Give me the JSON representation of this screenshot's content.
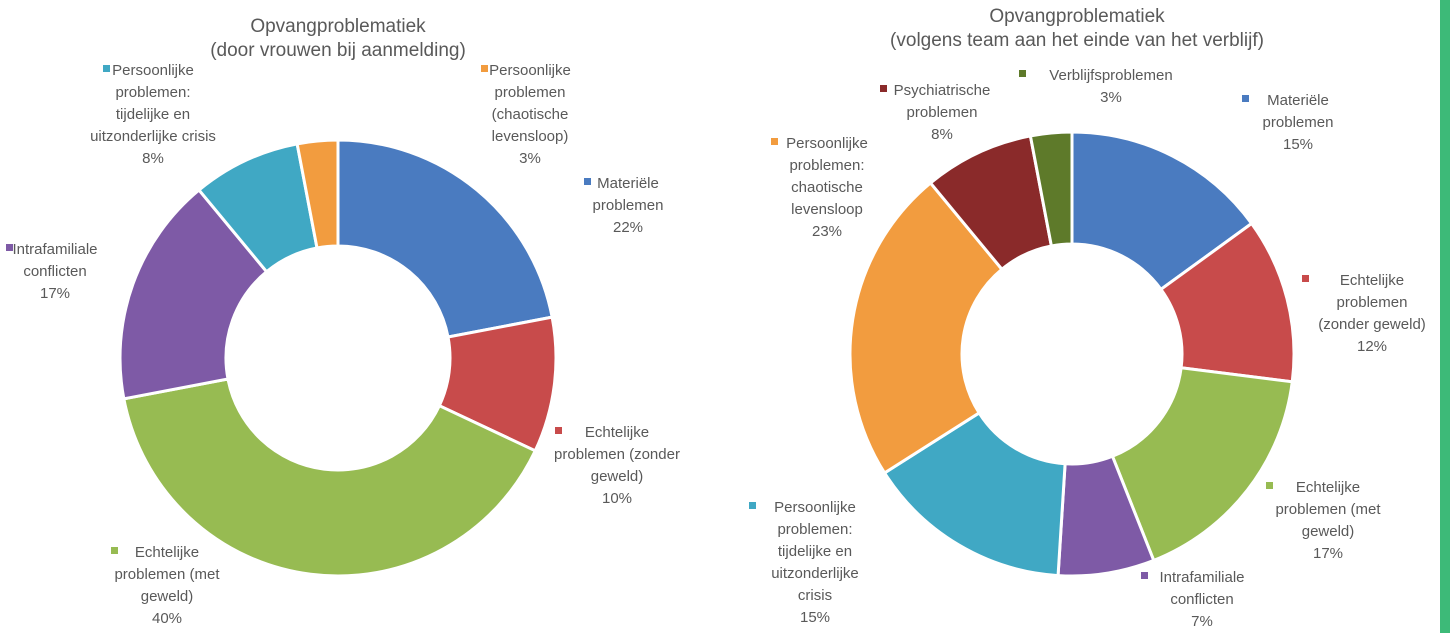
{
  "colors": {
    "edge_accent": "#3dba78",
    "text": "#595959",
    "slice_border": "#ffffff"
  },
  "chart_data": [
    {
      "type": "pie",
      "subtype": "donut",
      "title": "Opvangproblematiek",
      "subtitle": "(door vrouwen bij aanmelding)",
      "legend": "none (data labels next to slices)",
      "slices": [
        {
          "label": "Materiële problemen",
          "value": 22,
          "value_label": "22%",
          "color": "#4a7bc0"
        },
        {
          "label": "Echtelijke problemen (zonder geweld)",
          "value": 10,
          "value_label": "10%",
          "color": "#c84b4b"
        },
        {
          "label": "Echtelijke problemen (met geweld)",
          "value": 40,
          "value_label": "40%",
          "color": "#97bb52"
        },
        {
          "label": "Intrafamiliale conflicten",
          "value": 17,
          "value_label": "17%",
          "color": "#7e5aa6"
        },
        {
          "label": "Persoonlijke problemen: tijdelijke en uitzonderlijke crisis",
          "value": 8,
          "value_label": "8%",
          "color": "#40a8c4"
        },
        {
          "label": "Persoonlijke problemen (chaotische levensloop)",
          "value": 3,
          "value_label": "3%",
          "color": "#f29c3f"
        }
      ]
    },
    {
      "type": "pie",
      "subtype": "donut",
      "title": "Opvangproblematiek",
      "subtitle": "(volgens team aan het einde van het verblijf)",
      "legend": "none (data labels next to slices)",
      "slices": [
        {
          "label": "Materiële problemen",
          "value": 15,
          "value_label": "15%",
          "color": "#4a7bc0"
        },
        {
          "label": "Echtelijke problemen (zonder geweld)",
          "value": 12,
          "value_label": "12%",
          "color": "#c84b4b"
        },
        {
          "label": "Echtelijke problemen (met geweld)",
          "value": 17,
          "value_label": "17%",
          "color": "#97bb52"
        },
        {
          "label": "Intrafamiliale conflicten",
          "value": 7,
          "value_label": "7%",
          "color": "#7e5aa6"
        },
        {
          "label": "Persoonlijke problemen: tijdelijke en uitzonderlijke crisis",
          "value": 15,
          "value_label": "15%",
          "color": "#40a8c4"
        },
        {
          "label": "Persoonlijke problemen: chaotische levensloop",
          "value": 23,
          "value_label": "23%",
          "color": "#f29c3f"
        },
        {
          "label": "Psychiatrische problemen",
          "value": 8,
          "value_label": "8%",
          "color": "#8a2a2a"
        },
        {
          "label": "Verblijfsproblemen",
          "value": 3,
          "value_label": "3%",
          "color": "#5e7a2a"
        }
      ]
    }
  ]
}
